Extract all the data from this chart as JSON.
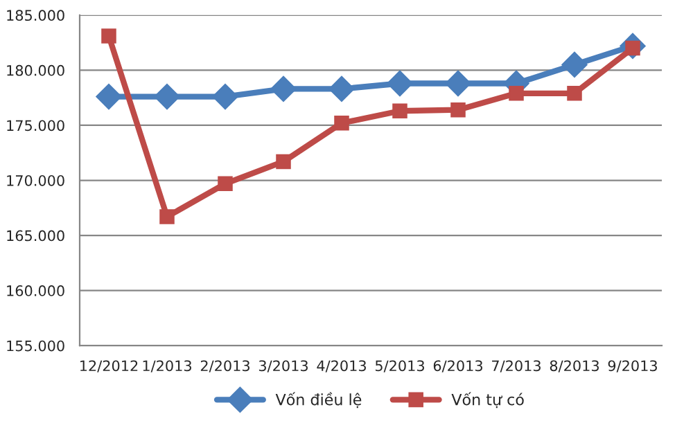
{
  "chart_data": {
    "type": "line",
    "categories": [
      "12/2012",
      "1/2013",
      "2/2013",
      "3/2013",
      "4/2013",
      "5/2013",
      "6/2013",
      "7/2013",
      "8/2013",
      "9/2013"
    ],
    "series": [
      {
        "name": "Vốn điều lệ",
        "color": "#4a7ebb",
        "marker": "diamond",
        "values": [
          177600,
          177600,
          177600,
          178300,
          178300,
          178800,
          178800,
          178800,
          180500,
          182200
        ]
      },
      {
        "name": "Vốn tự có",
        "color": "#be4b48",
        "marker": "square",
        "values": [
          183100,
          166700,
          169700,
          171700,
          175200,
          176300,
          176400,
          177900,
          177900,
          182000
        ]
      }
    ],
    "ylim": [
      155000,
      185000
    ],
    "yticks": [
      {
        "value": 155000,
        "label": "155.000"
      },
      {
        "value": 160000,
        "label": "160.000"
      },
      {
        "value": 165000,
        "label": "165.000"
      },
      {
        "value": 170000,
        "label": "170.000"
      },
      {
        "value": 175000,
        "label": "175.000"
      },
      {
        "value": 180000,
        "label": "180.000"
      },
      {
        "value": 185000,
        "label": "185.000"
      }
    ],
    "grid": "y",
    "legend": "bottom",
    "line_style": "solid"
  }
}
